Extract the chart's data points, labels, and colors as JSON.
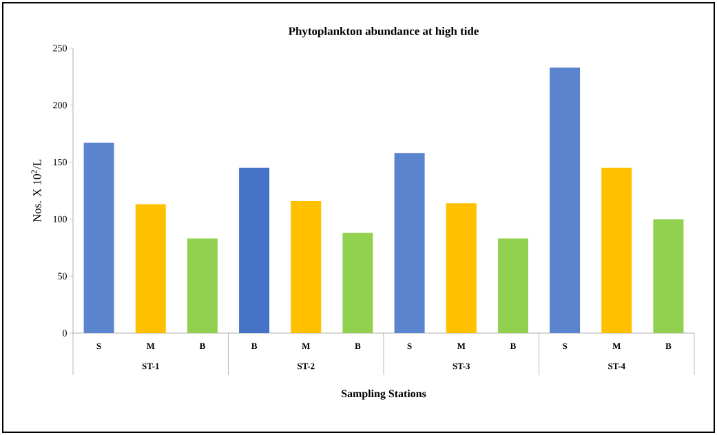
{
  "chart_data": {
    "type": "bar",
    "title": "Phytoplankton abundance at high tide",
    "xlabel": "Sampling Stations",
    "ylabel": "Nos. X 10$^{2}$/L",
    "categories": [
      "S",
      "M",
      "B",
      "B",
      "M",
      "B",
      "S",
      "M",
      "B",
      "S",
      "M",
      "B"
    ],
    "values": [
      167,
      113,
      83,
      145,
      116,
      88,
      158,
      114,
      83,
      233,
      145,
      100
    ],
    "colors": [
      "#5b84cf",
      "#ffc000",
      "#92d050",
      "#4472c4",
      "#ffc000",
      "#92d050",
      "#5b84cf",
      "#ffc000",
      "#92d050",
      "#5b84cf",
      "#ffc000",
      "#92d050"
    ],
    "annotations": [
      "ST-1",
      "ST-2",
      "ST-3",
      "ST-4"
    ],
    "ylim": [
      0,
      250
    ],
    "yticks": [
      0,
      50,
      100,
      150,
      200,
      250
    ],
    "grid": false
  }
}
